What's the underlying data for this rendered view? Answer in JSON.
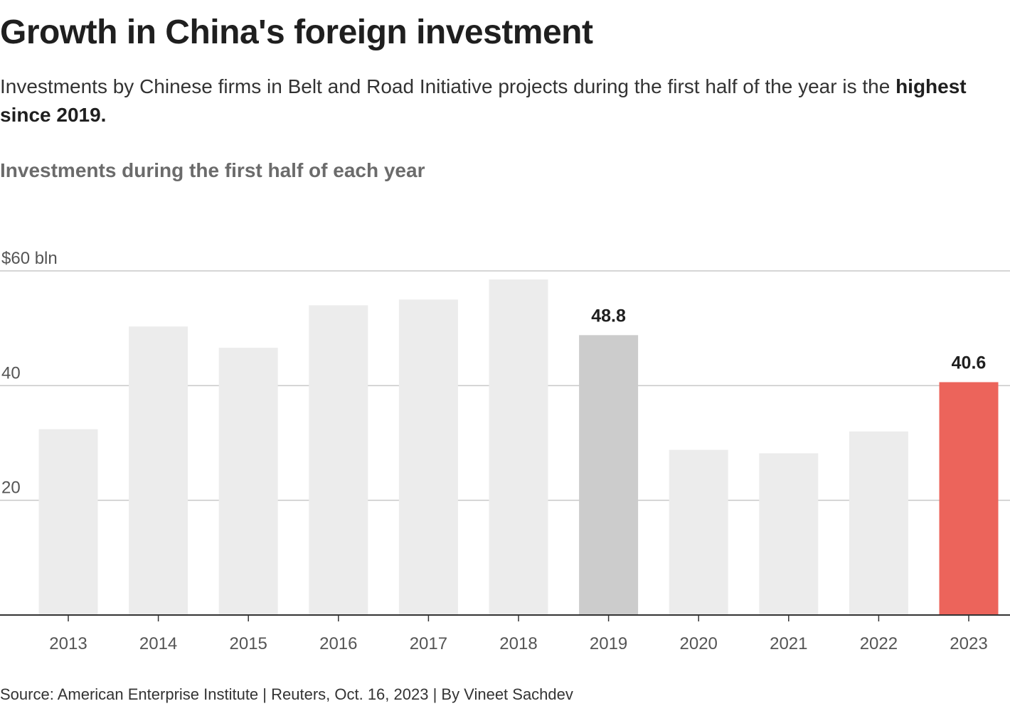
{
  "header": {
    "title": "Growth in China's foreign investment",
    "subtitle_text": "Investments by Chinese firms in Belt and Road Initiative projects during the first half of the year is the ",
    "subtitle_emphasis": "highest since 2019."
  },
  "chart_data": {
    "type": "bar",
    "title": "Investments during the first half of each year",
    "categories": [
      "2013",
      "2014",
      "2015",
      "2016",
      "2017",
      "2018",
      "2019",
      "2020",
      "2021",
      "2022",
      "2023"
    ],
    "values": [
      32.4,
      50.3,
      46.6,
      54.0,
      55.0,
      58.5,
      48.8,
      28.8,
      28.2,
      32.0,
      40.6
    ],
    "unit": "$ bln",
    "ylim": [
      0,
      60
    ],
    "yticks": [
      {
        "value": 60,
        "label": "$60 bln"
      },
      {
        "value": 40,
        "label": "40"
      },
      {
        "value": 20,
        "label": "20"
      }
    ],
    "data_labels": [
      {
        "category": "2019",
        "label": "48.8"
      },
      {
        "category": "2023",
        "label": "40.6"
      }
    ],
    "bar_colors": {
      "default": "#ececec",
      "2019": "#cccccc",
      "2023": "#ec645b"
    },
    "grid": true,
    "xlabel": "",
    "ylabel": ""
  },
  "footer": {
    "source": "Source: American Enterprise Institute | Reuters, Oct. 16, 2023 | By Vineet Sachdev"
  }
}
